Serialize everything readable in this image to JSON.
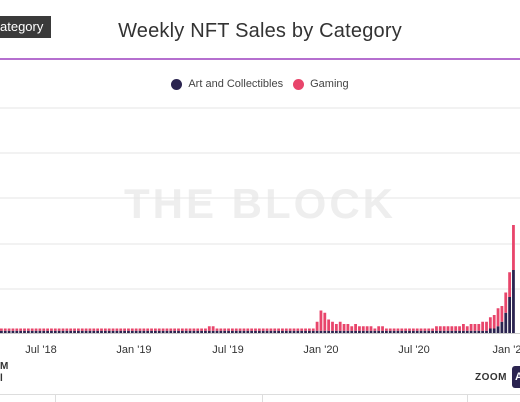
{
  "header": {
    "badge": "ategory",
    "title": "Weekly NFT Sales by Category"
  },
  "watermark": "THE BLOCK",
  "navigator": {
    "line1": "M",
    "line2": "l"
  },
  "zoom": {
    "label": "ZOOM",
    "button": "A"
  },
  "colors": {
    "art": "#2b2450",
    "gaming": "#e8456b",
    "accent": "#b56fcf"
  },
  "chart_data": {
    "type": "bar",
    "title": "Weekly NFT Sales by Category",
    "stacked": true,
    "legend_position": "top",
    "grid": true,
    "x_ticks": [
      "Jul '18",
      "Jan '19",
      "Jul '19",
      "Jan '20",
      "Jul '20",
      "Jan '2"
    ],
    "series": [
      {
        "name": "Art and Collectibles",
        "color": "#2b2450",
        "values": [
          1,
          1,
          1,
          1,
          1,
          1,
          1,
          1,
          1,
          1,
          1,
          1,
          1,
          1,
          1,
          1,
          1,
          1,
          1,
          1,
          1,
          1,
          1,
          1,
          1,
          1,
          1,
          1,
          1,
          1,
          1,
          1,
          1,
          1,
          1,
          1,
          1,
          1,
          1,
          1,
          1,
          1,
          1,
          1,
          1,
          1,
          1,
          1,
          1,
          1,
          1,
          1,
          1,
          1,
          1,
          1,
          1,
          1,
          1,
          1,
          1,
          1,
          1,
          1,
          1,
          1,
          1,
          1,
          1,
          1,
          1,
          1,
          1,
          1,
          1,
          1,
          1,
          1,
          1,
          1,
          1,
          1,
          1,
          1,
          1,
          1,
          1,
          1,
          1,
          1,
          1,
          1,
          1,
          1,
          1,
          1,
          1,
          1,
          1,
          1,
          1,
          1,
          1,
          1,
          1,
          1,
          1,
          1,
          1,
          1,
          1,
          1,
          1,
          1,
          1,
          1,
          1,
          1,
          1,
          1,
          1,
          1,
          1,
          1,
          1,
          1,
          1,
          2,
          2,
          3,
          5,
          9,
          16,
          28
        ]
      },
      {
        "name": "Gaming",
        "color": "#e8456b",
        "values": [
          1,
          1,
          1,
          1,
          1,
          1,
          1,
          1,
          1,
          1,
          1,
          1,
          1,
          1,
          1,
          1,
          1,
          1,
          1,
          1,
          1,
          1,
          1,
          1,
          1,
          1,
          1,
          1,
          1,
          1,
          1,
          1,
          1,
          1,
          1,
          1,
          1,
          1,
          1,
          1,
          1,
          1,
          1,
          1,
          1,
          1,
          1,
          1,
          1,
          1,
          1,
          1,
          1,
          1,
          2,
          2,
          1,
          1,
          1,
          1,
          1,
          1,
          1,
          1,
          1,
          1,
          1,
          1,
          1,
          1,
          1,
          1,
          1,
          1,
          1,
          1,
          1,
          1,
          1,
          1,
          1,
          1,
          4,
          9,
          8,
          5,
          4,
          3,
          4,
          3,
          3,
          2,
          3,
          2,
          2,
          2,
          2,
          1,
          2,
          2,
          1,
          1,
          1,
          1,
          1,
          1,
          1,
          1,
          1,
          1,
          1,
          1,
          1,
          2,
          2,
          2,
          2,
          2,
          2,
          2,
          3,
          2,
          3,
          3,
          3,
          4,
          4,
          5,
          6,
          8,
          7,
          9,
          11,
          20
        ]
      }
    ]
  }
}
